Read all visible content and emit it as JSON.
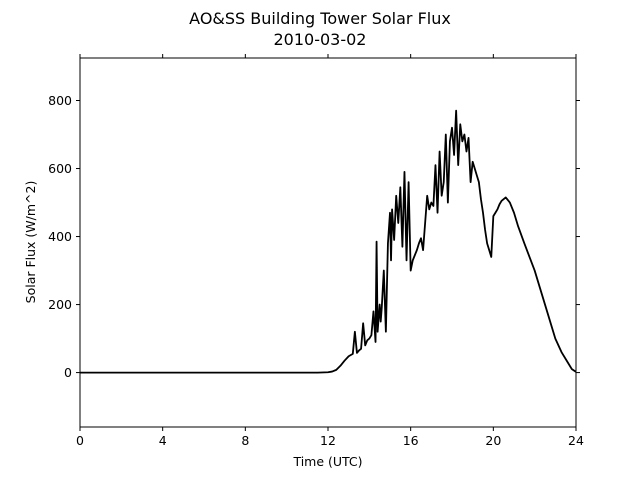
{
  "chart_data": {
    "type": "line",
    "title": "AO&SS Building Tower Solar Flux",
    "subtitle": "2010-03-02",
    "xlabel": "Time (UTC)",
    "ylabel": "Solar Flux (W/m^2)",
    "xlim": [
      0,
      24
    ],
    "ylim": [
      -160,
      925
    ],
    "x_ticks": [
      0,
      4,
      8,
      12,
      16,
      20,
      24
    ],
    "y_ticks": [
      0,
      200,
      400,
      600,
      800
    ],
    "grid": false,
    "legend": "none",
    "series": [
      {
        "color": "#000000",
        "x": [
          0,
          6,
          11.5,
          12.0,
          12.2,
          12.4,
          12.6,
          12.8,
          13.0,
          13.2,
          13.3,
          13.4,
          13.5,
          13.6,
          13.7,
          13.8,
          13.9,
          14.0,
          14.1,
          14.2,
          14.3,
          14.35,
          14.4,
          14.5,
          14.55,
          14.6,
          14.7,
          14.8,
          14.9,
          15.0,
          15.05,
          15.1,
          15.2,
          15.3,
          15.4,
          15.5,
          15.6,
          15.7,
          15.8,
          15.9,
          16.0,
          16.1,
          16.2,
          16.3,
          16.4,
          16.5,
          16.6,
          16.7,
          16.8,
          16.9,
          17.0,
          17.1,
          17.2,
          17.3,
          17.4,
          17.5,
          17.6,
          17.7,
          17.8,
          17.9,
          18.0,
          18.1,
          18.2,
          18.3,
          18.4,
          18.5,
          18.6,
          18.7,
          18.8,
          18.9,
          19.0,
          19.1,
          19.2,
          19.3,
          19.4,
          19.5,
          19.6,
          19.7,
          19.8,
          19.9,
          20.0,
          20.1,
          20.2,
          20.3,
          20.4,
          20.6,
          20.8,
          21.0,
          21.2,
          21.5,
          22.0,
          22.5,
          23.0,
          23.3,
          23.6,
          23.8,
          24.0
        ],
        "y": [
          0,
          0,
          0,
          1,
          3,
          8,
          20,
          35,
          48,
          55,
          120,
          58,
          65,
          70,
          145,
          80,
          95,
          100,
          110,
          180,
          90,
          385,
          120,
          200,
          150,
          190,
          300,
          120,
          380,
          470,
          330,
          480,
          390,
          520,
          440,
          545,
          370,
          590,
          330,
          560,
          300,
          330,
          345,
          360,
          380,
          395,
          360,
          440,
          520,
          480,
          500,
          490,
          610,
          470,
          650,
          520,
          560,
          700,
          500,
          680,
          720,
          640,
          770,
          610,
          730,
          680,
          700,
          650,
          690,
          560,
          620,
          600,
          580,
          560,
          510,
          470,
          420,
          380,
          360,
          340,
          460,
          470,
          480,
          495,
          505,
          515,
          500,
          470,
          430,
          380,
          300,
          200,
          100,
          60,
          30,
          10,
          2
        ]
      }
    ]
  }
}
